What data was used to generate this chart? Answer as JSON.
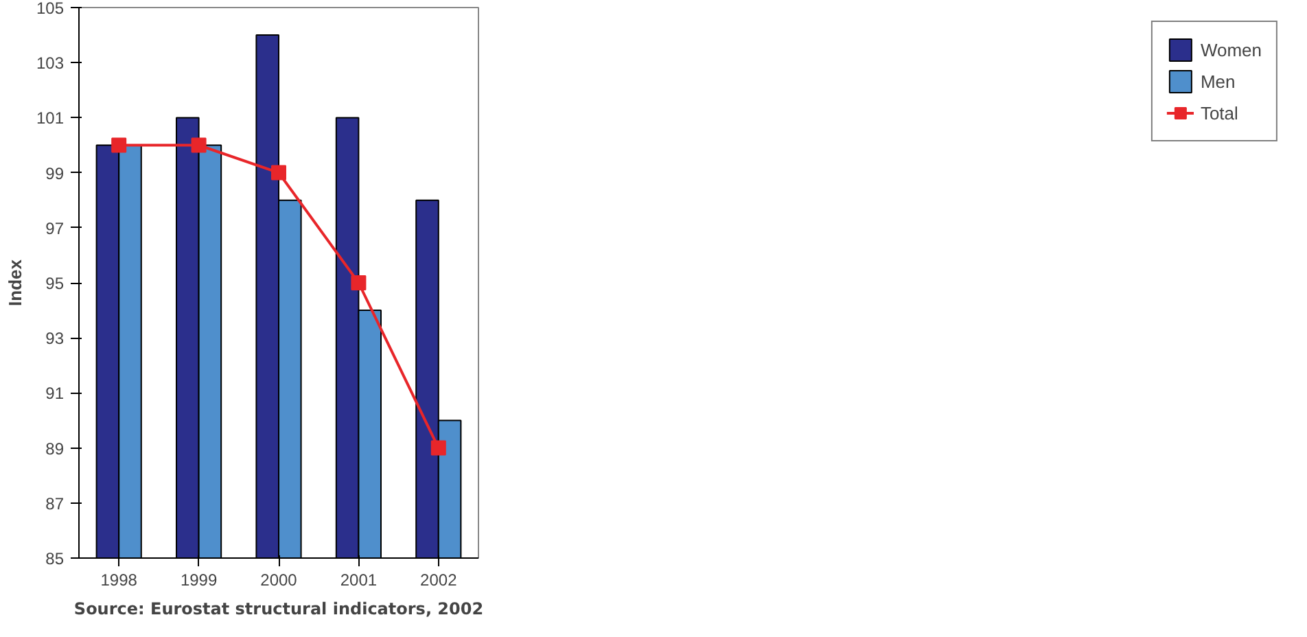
{
  "chart_data": {
    "type": "bar",
    "ylabel": "Index",
    "categories": [
      "1998",
      "1999",
      "2000",
      "2001",
      "2002"
    ],
    "series": [
      {
        "name": "Women",
        "color": "#2b2f8c",
        "values": [
          100,
          101,
          104,
          101,
          98
        ]
      },
      {
        "name": "Men",
        "color": "#4f8fcc",
        "values": [
          100,
          100,
          98,
          94,
          90
        ]
      },
      {
        "name": "Total",
        "type": "line",
        "color": "#e8262a",
        "marker": "square",
        "values": [
          100,
          100,
          99,
          95,
          89
        ]
      }
    ],
    "ylim": [
      85,
      105
    ],
    "yticks": [
      85,
      87,
      89,
      91,
      93,
      95,
      97,
      99,
      101,
      103,
      105
    ],
    "grid": false,
    "legend": "right",
    "annotations": [
      "Source: Eurostat structural indicators, 2002"
    ]
  }
}
